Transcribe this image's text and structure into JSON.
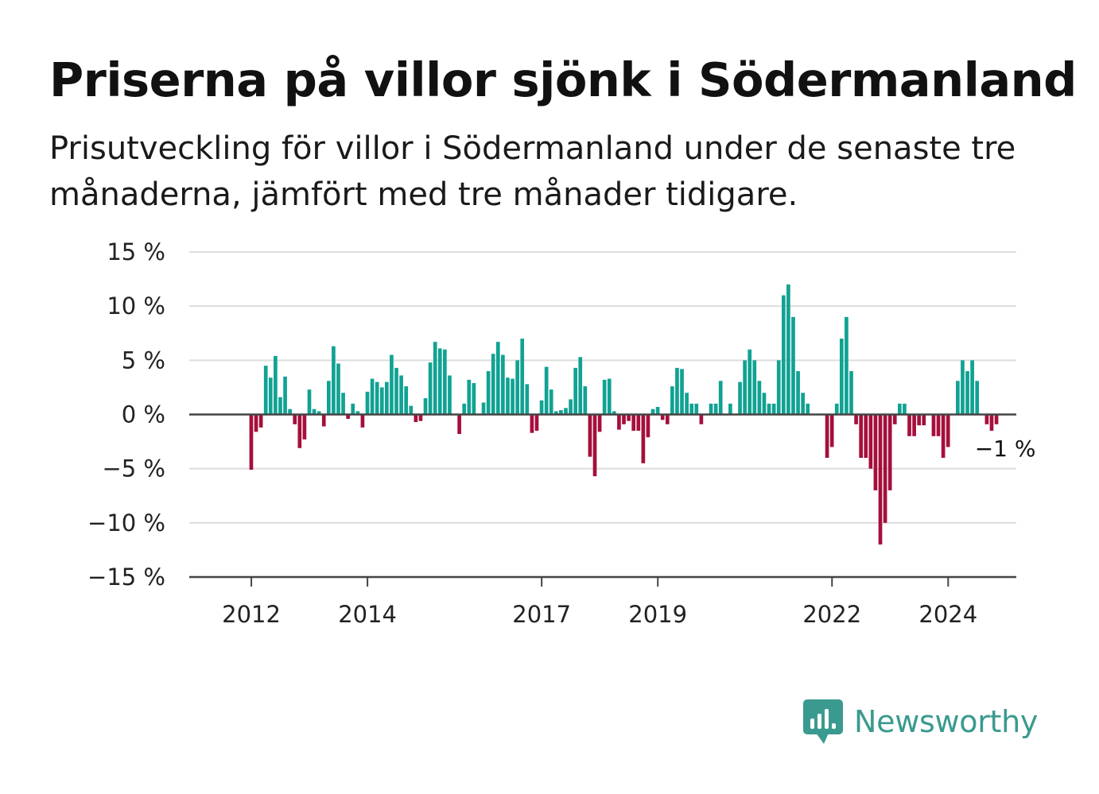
{
  "title": "Priserna på villor sjönk i Södermanland",
  "subtitle": "Prisutveckling för villor i Södermanland under de senaste tre månaderna, jämfört med tre månader tidigare.",
  "brand": {
    "name": "Newsworthy",
    "icon": "bar-chart-speech-bubble-icon"
  },
  "colors": {
    "positive": "#11a293",
    "negative": "#a50f3c",
    "grid": "#dddddd",
    "axis": "#444444",
    "text": "#111111",
    "brand": "#3a9a8f"
  },
  "chart_data": {
    "type": "bar",
    "title": "Priserna på villor sjönk i Södermanland",
    "x_start": "2011-01",
    "x_step": "month",
    "ylim": [
      -15,
      15
    ],
    "y_ticks": [
      15,
      10,
      5,
      0,
      -5,
      -10,
      -15
    ],
    "y_tick_labels": [
      "15 %",
      "10 %",
      "5 %",
      "0 %",
      "−5 %",
      "−10 %",
      "−15 %"
    ],
    "x_ticks": [
      "2012",
      "2014",
      "2017",
      "2019",
      "2022",
      "2024"
    ],
    "grid": true,
    "annotation": {
      "text": "−1 %",
      "at": "last"
    },
    "values": [
      null,
      null,
      null,
      null,
      null,
      null,
      null,
      null,
      null,
      null,
      null,
      null,
      -5.1,
      -1.6,
      -1.2,
      4.5,
      3.4,
      5.4,
      1.6,
      3.5,
      0.5,
      -0.9,
      -3.1,
      -2.3,
      2.3,
      0.5,
      0.3,
      -1.1,
      3.1,
      6.3,
      4.7,
      2.0,
      -0.4,
      1.0,
      0.3,
      -1.2,
      2.1,
      3.3,
      3.0,
      2.5,
      3.0,
      5.5,
      4.3,
      3.6,
      2.6,
      0.8,
      -0.7,
      -0.6,
      1.5,
      4.8,
      6.7,
      6.1,
      6.0,
      3.6,
      0.0,
      -1.8,
      1.0,
      3.2,
      2.9,
      0.0,
      1.1,
      4.0,
      5.6,
      6.7,
      5.5,
      3.4,
      3.3,
      5.0,
      7.0,
      2.8,
      -1.7,
      -1.5,
      1.3,
      4.4,
      2.3,
      0.3,
      0.4,
      0.6,
      1.4,
      4.3,
      5.3,
      2.6,
      -3.9,
      -5.7,
      -1.6,
      3.2,
      3.3,
      0.3,
      -1.4,
      -0.9,
      -0.6,
      -1.5,
      -1.5,
      -4.5,
      -2.1,
      0.5,
      0.7,
      -0.5,
      -0.9,
      2.6,
      4.3,
      4.2,
      2.0,
      1.0,
      1.0,
      -0.9,
      0.0,
      1.0,
      1.0,
      3.1,
      0.0,
      1.0,
      0.0,
      3.0,
      5.0,
      6.0,
      5.0,
      3.1,
      2.0,
      1.0,
      1.0,
      5.0,
      11.0,
      12.0,
      9.0,
      4.0,
      2.0,
      1.0,
      0.0,
      0.0,
      0.0,
      -4.0,
      -3.0,
      1.0,
      7.0,
      9.0,
      4.0,
      -0.9,
      -4.0,
      -4.0,
      -5.0,
      -7.0,
      -12.0,
      -10.0,
      -7.0,
      -0.9,
      1.0,
      1.0,
      -2.0,
      -2.0,
      -1.0,
      -1.0,
      0.0,
      -2.0,
      -2.0,
      -4.0,
      -3.0,
      0.0,
      3.1,
      5.0,
      4.0,
      5.0,
      3.1,
      0.0,
      -0.9,
      -1.5,
      -0.9
    ]
  }
}
